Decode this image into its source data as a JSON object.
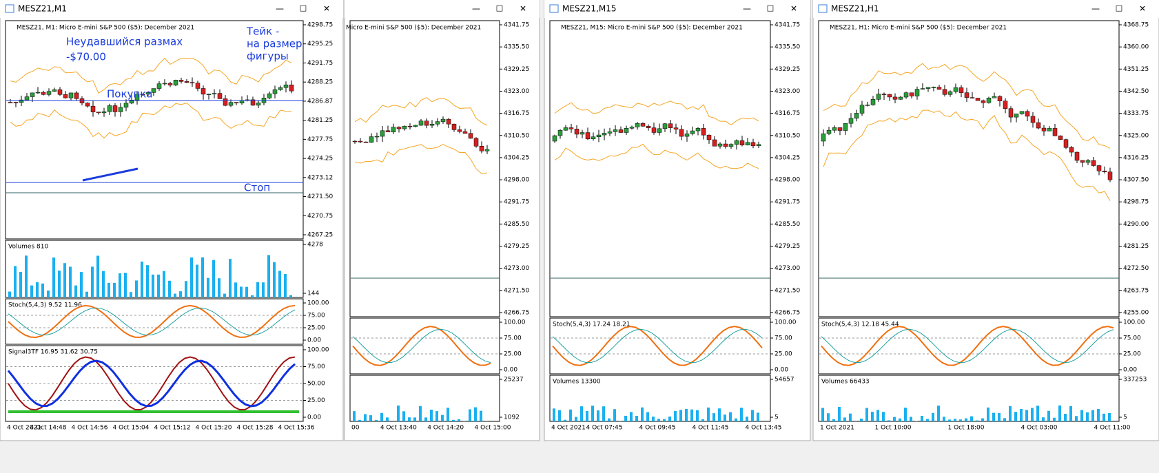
{
  "windows": [
    {
      "title": "MESZ21,M1",
      "header": "MESZ21, M1:  Micro E-mini S&P 500 ($5): December 2021",
      "panes": [
        {
          "scale": [
            "4298.75",
            "4295.25",
            "4291.75",
            "4288.25",
            "4286.87",
            "4281.25",
            "4277.75",
            "4274.25",
            "4273.12",
            "4271.50",
            "4270.75",
            "4267.25"
          ]
        },
        {
          "label": "Volumes 810",
          "scale": [
            "4278",
            "144"
          ]
        },
        {
          "label": "Stoch(5,4,3) 9.52 11.96",
          "scale": [
            "100.00",
            "75.00",
            "25.00",
            "0.00"
          ]
        },
        {
          "label": "Signal3TF 16.95 31.62 30.75",
          "scale": [
            "100.00",
            "75.00",
            "50.00",
            "25.00",
            "0.00"
          ]
        }
      ],
      "times": [
        "4 Oct 2021",
        "4 Oct 14:48",
        "4 Oct 14:56",
        "4 Oct 15:04",
        "4 Oct 15:12",
        "4 Oct 15:20",
        "4 Oct 15:28",
        "4 Oct 15:36"
      ],
      "annotations": [
        "Неудавшийся размах",
        "-$70.00",
        "Тейк -",
        "на размер",
        "фигуры",
        "Покупка",
        "Стоп"
      ]
    },
    {
      "title": "",
      "header": "Micro E-mini S&P 500 ($5): December 2021",
      "panes": [
        {
          "scale": [
            "4341.75",
            "4335.50",
            "4329.25",
            "4323.00",
            "4316.75",
            "4310.50",
            "4304.25",
            "4298.00",
            "4291.75",
            "4285.50",
            "4279.25",
            "4273.00",
            "4271.50",
            "4266.75"
          ]
        },
        {
          "scale": [
            "100.00",
            "75.00",
            "25.00",
            "0.00"
          ]
        },
        {
          "scale": [
            "25237",
            "1092"
          ]
        }
      ],
      "times": [
        "00",
        "4 Oct 13:40",
        "4 Oct 14:20",
        "4 Oct 15:00"
      ]
    },
    {
      "title": "MESZ21,M15",
      "header": "MESZ21, M15:  Micro E-mini S&P 500 ($5): December 2021",
      "panes": [
        {
          "scale": [
            "4341.75",
            "4335.50",
            "4329.25",
            "4323.00",
            "4316.75",
            "4310.50",
            "4304.25",
            "4298.00",
            "4291.75",
            "4285.50",
            "4279.25",
            "4273.00",
            "4271.50",
            "4266.75"
          ]
        },
        {
          "label": "Stoch(5,4,3) 17.24 18.21",
          "scale": [
            "100.00",
            "75.00",
            "25.00",
            "0.00"
          ]
        },
        {
          "label": "Volumes 13300",
          "scale": [
            "54657",
            "5"
          ]
        }
      ],
      "times": [
        "4 Oct 2021",
        "4 Oct 07:45",
        "4 Oct 09:45",
        "4 Oct 11:45",
        "4 Oct 13:45"
      ]
    },
    {
      "title": "MESZ21,H1",
      "header": "MESZ21, H1:  Micro E-mini S&P 500 ($5): December 2021",
      "panes": [
        {
          "scale": [
            "4368.75",
            "4360.00",
            "4351.25",
            "4342.50",
            "4333.75",
            "4325.00",
            "4316.25",
            "4307.50",
            "4298.75",
            "4290.00",
            "4281.25",
            "4272.50",
            "4263.75",
            "4255.00"
          ]
        },
        {
          "label": "Stoch(5,4,3) 12.18 45.44",
          "scale": [
            "100.00",
            "75.00",
            "25.00",
            "0.00"
          ]
        },
        {
          "label": "Volumes 66433",
          "scale": [
            "337253",
            "5"
          ]
        }
      ],
      "times": [
        "1 Oct 2021",
        "1 Oct 10:00",
        "1 Oct 18:00",
        "4 Oct 03:00",
        "4 Oct 11:00"
      ]
    }
  ]
}
